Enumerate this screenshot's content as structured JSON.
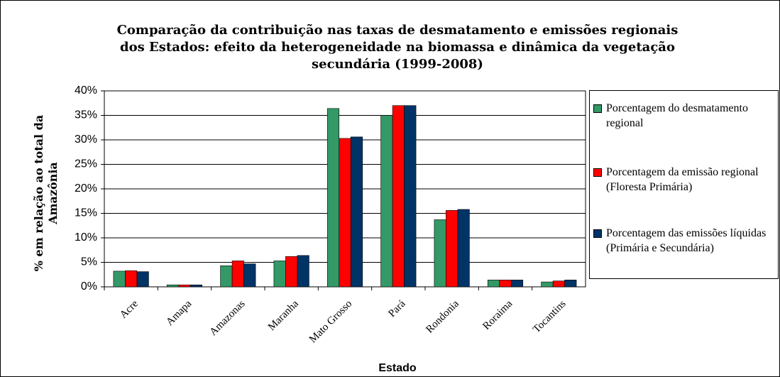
{
  "chart_data": {
    "type": "bar",
    "title": [
      "Comparação da contribuição nas taxas de desmatamento e emissões regionais",
      "dos Estados: efeito da heterogeneidade na biomassa e dinâmica da vegetação",
      "secundária (1999-2008)"
    ],
    "x_label": "Estado",
    "y_label": "% em relação ao total da Amazônia",
    "categories": [
      "Acre",
      "Amapa",
      "Amazonas",
      "Maranha",
      "Mato Grosso",
      "Pará",
      "Rondonia",
      "Roraima",
      "Tocantins"
    ],
    "series": [
      {
        "name": "Porcentagem do desmatamento regional",
        "color": "#339966",
        "values": [
          3.2,
          0.4,
          4.3,
          5.3,
          36.4,
          35.0,
          13.7,
          1.4,
          1.0
        ]
      },
      {
        "name": "Porcentagem da emissão regional (Floresta Primária)",
        "color": "#ff0000",
        "values": [
          3.3,
          0.4,
          5.3,
          6.2,
          30.3,
          37.0,
          15.6,
          1.4,
          1.2
        ]
      },
      {
        "name": "Porcentagem das emissões líquidas (Primária e Secundária)",
        "color": "#003366",
        "values": [
          3.1,
          0.4,
          4.7,
          6.4,
          30.6,
          37.0,
          15.8,
          1.4,
          1.4
        ]
      }
    ],
    "ylim": [
      0,
      40
    ],
    "yticks": [
      {
        "value": 0,
        "label": "0%"
      },
      {
        "value": 5,
        "label": "5%"
      },
      {
        "value": 10,
        "label": "10%"
      },
      {
        "value": 15,
        "label": "15%"
      },
      {
        "value": 20,
        "label": "20%"
      },
      {
        "value": 25,
        "label": "25%"
      },
      {
        "value": 30,
        "label": "30%"
      },
      {
        "value": 35,
        "label": "35%"
      },
      {
        "value": 40,
        "label": "40%"
      }
    ],
    "grid": true,
    "legend": "right"
  }
}
